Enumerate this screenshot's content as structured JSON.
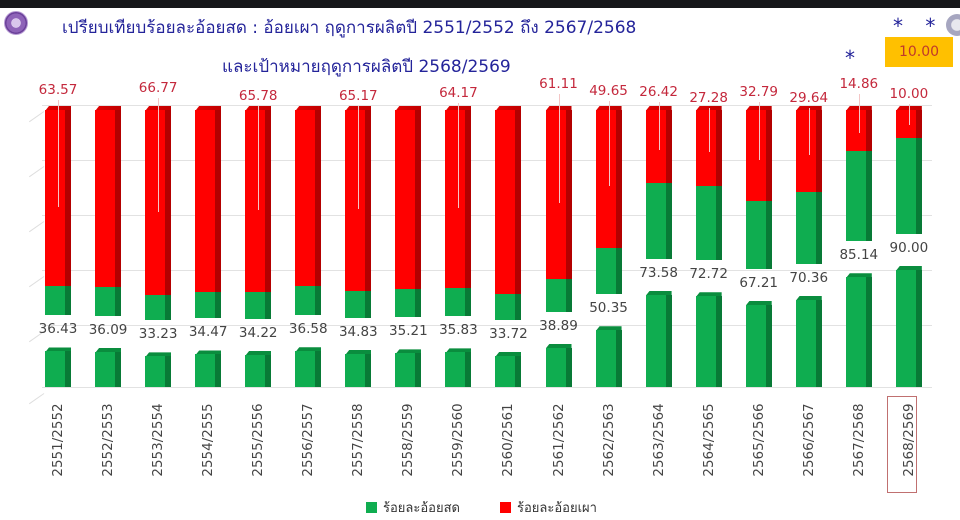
{
  "header": {
    "title_line1": "เปรียบเทียบร้อยละอ้อยสด : อ้อยเผา ฤดูการผลิตปี 2551/2552 ถึง 2567/2568",
    "title_line2": "และเป้าหมายฤดูการผลิตปี 2568/2569"
  },
  "annotations": {
    "single_star": "*",
    "double_star": "* *",
    "target_burn_label": "10.00",
    "target_category": "2568/2569"
  },
  "legend": {
    "fresh_label": "ร้อยละอ้อยสด",
    "burnt_label": "ร้อยละอ้อยเผา",
    "fresh_color": "#0fad50",
    "burnt_color": "#ff0000"
  },
  "chart_data": {
    "type": "bar",
    "stacked": true,
    "title": "เปรียบเทียบร้อยละอ้อยสด : อ้อยเผา ฤดูการผลิตปี 2551/2552 ถึง 2567/2568 และเป้าหมายฤดูการผลิตปี 2568/2569",
    "xlabel": "",
    "ylabel": "",
    "ylim": [
      0,
      100
    ],
    "grid": true,
    "legend_position": "bottom",
    "categories": [
      "2551/2552",
      "2552/2553",
      "2553/2554",
      "2554/2555",
      "2555/2556",
      "2556/2557",
      "2557/2558",
      "2558/2559",
      "2559/2560",
      "2560/2561",
      "2561/2562",
      "2562/2563",
      "2563/2564",
      "2564/2565",
      "2565/2566",
      "2566/2567",
      "2567/2568",
      "2568/2569"
    ],
    "series": [
      {
        "name": "ร้อยละอ้อยสด",
        "color": "#0fad50",
        "values": [
          36.43,
          36.09,
          33.23,
          34.47,
          34.22,
          36.58,
          34.83,
          35.21,
          35.83,
          33.72,
          38.89,
          50.35,
          73.58,
          72.72,
          67.21,
          70.36,
          85.14,
          90.0
        ]
      },
      {
        "name": "ร้อยละอ้อยเผา",
        "color": "#ff0000",
        "values": [
          63.57,
          null,
          66.77,
          null,
          65.78,
          null,
          65.17,
          null,
          64.17,
          null,
          61.11,
          49.65,
          26.42,
          27.28,
          32.79,
          29.64,
          14.86,
          10.0
        ],
        "labels_shown": [
          "63.57",
          "",
          "66.77",
          "",
          "65.78",
          "",
          "65.17",
          "",
          "64.17",
          "",
          "61.11",
          "49.65",
          "26.42",
          "27.28",
          "32.79",
          "29.64",
          "14.86",
          "10.00"
        ]
      }
    ],
    "fresh_labels": [
      "36.43",
      "36.09",
      "33.23",
      "34.47",
      "34.22",
      "36.58",
      "34.83",
      "35.21",
      "35.83",
      "33.72",
      "38.89",
      "50.35",
      "73.58",
      "72.72",
      "67.21",
      "70.36",
      "85.14",
      "90.00"
    ],
    "annotations": [
      "* on 2567/2568",
      "* * on 2568/2569 (target)",
      "2568/2569 category boxed"
    ]
  }
}
